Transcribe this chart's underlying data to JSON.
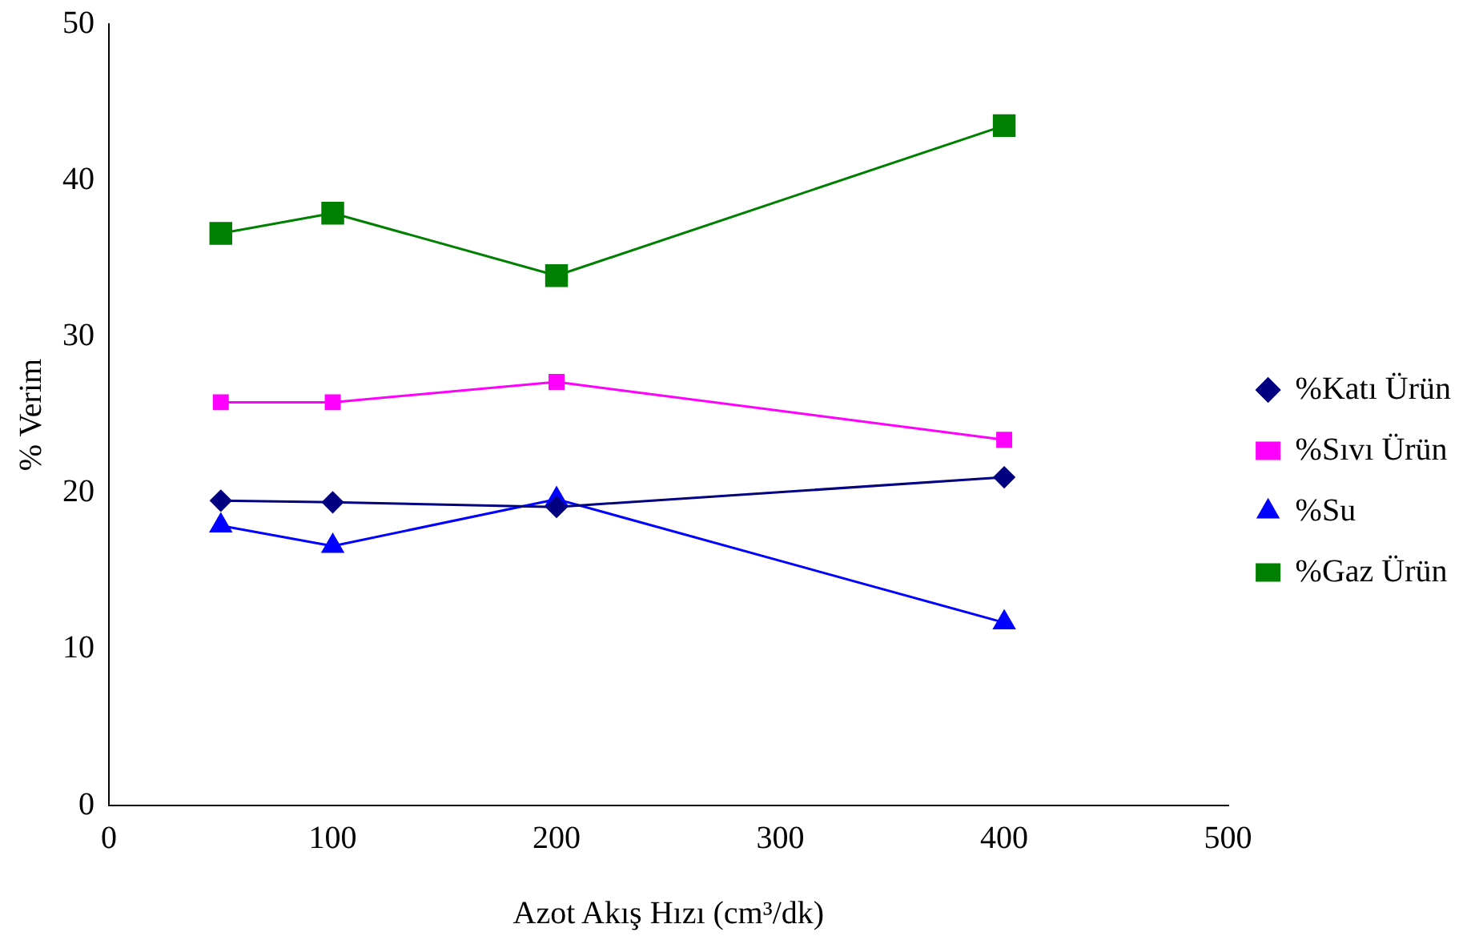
{
  "chart_data": {
    "type": "line",
    "xlabel": "Azot Akış Hızı (cm³/dk)",
    "ylabel": "% Verim",
    "x": [
      50,
      100,
      200,
      400
    ],
    "series": [
      {
        "name": "%Katı Ürün",
        "color": "#000080",
        "marker": "diamond",
        "values": [
          19.5,
          19.4,
          19.1,
          21.0
        ]
      },
      {
        "name": "%Sıvı Ürün",
        "color": "#ff00ff",
        "marker": "square",
        "values": [
          25.8,
          25.8,
          27.1,
          23.4
        ]
      },
      {
        "name": "%Su",
        "color": "#0000ff",
        "marker": "triangle",
        "values": [
          17.9,
          16.6,
          19.6,
          11.7
        ]
      },
      {
        "name": "%Gaz Ürün",
        "color": "#008000",
        "marker": "square",
        "values": [
          36.6,
          37.9,
          33.9,
          43.5
        ]
      }
    ],
    "xlim": [
      0,
      500
    ],
    "xticks": [
      0,
      100,
      200,
      300,
      400,
      500
    ],
    "ylim": [
      0,
      50
    ],
    "yticks": [
      0,
      10,
      20,
      30,
      40,
      50
    ],
    "grid": false,
    "legend": "right"
  }
}
